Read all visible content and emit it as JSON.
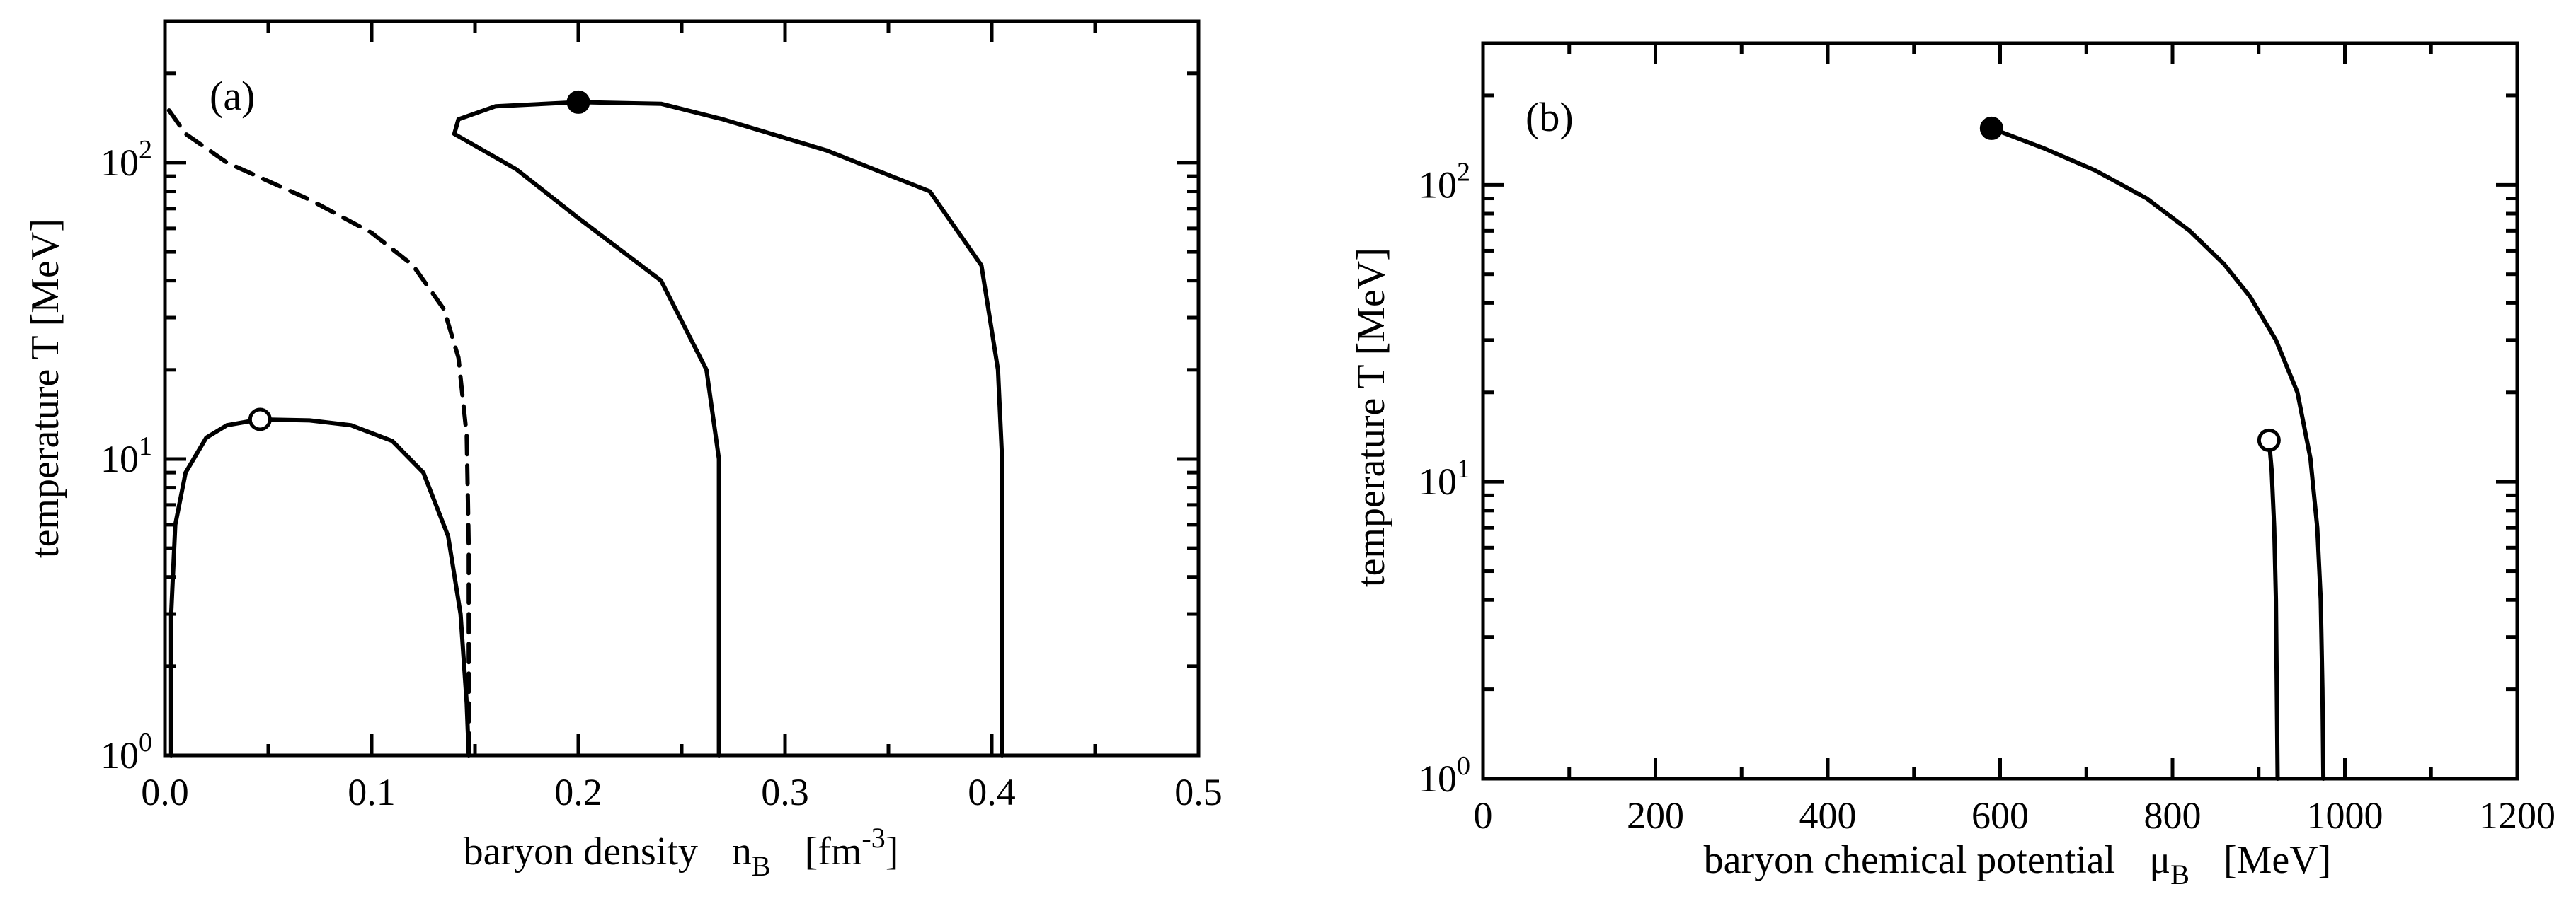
{
  "chart_data": [
    {
      "type": "line",
      "panel_label": "(a)",
      "xlabel": "baryon density",
      "xlabel_symbol": "n",
      "xlabel_sub": "B",
      "xlabel_unit_open": "[fm",
      "xlabel_unit_sup": "-3",
      "xlabel_unit_close": "]",
      "ylabel": "temperature   T   [MeV]",
      "xlim": [
        0,
        0.5
      ],
      "ylim": [
        1,
        300
      ],
      "yscale": "log",
      "x_ticks": [
        {
          "value": 0.0,
          "label": "0.0"
        },
        {
          "value": 0.1,
          "label": "0.1"
        },
        {
          "value": 0.2,
          "label": "0.2"
        },
        {
          "value": 0.3,
          "label": "0.3"
        },
        {
          "value": 0.4,
          "label": "0.4"
        },
        {
          "value": 0.5,
          "label": "0.5"
        }
      ],
      "y_ticks": [
        {
          "value": 1,
          "base": "10",
          "exp": "0"
        },
        {
          "value": 10,
          "base": "10",
          "exp": "1"
        },
        {
          "value": 100,
          "base": "10",
          "exp": "2"
        }
      ],
      "series": [
        {
          "style": "solid",
          "points": [
            [
              0.003,
              1
            ],
            [
              0.003,
              3
            ],
            [
              0.005,
              6
            ],
            [
              0.01,
              9
            ],
            [
              0.02,
              11.8
            ],
            [
              0.03,
              13
            ],
            [
              0.046,
              13.6
            ],
            [
              0.07,
              13.5
            ],
            [
              0.09,
              13
            ],
            [
              0.11,
              11.5
            ],
            [
              0.125,
              9
            ],
            [
              0.137,
              5.5
            ],
            [
              0.143,
              3
            ],
            [
              0.146,
              1.5
            ],
            [
              0.147,
              1
            ]
          ]
        },
        {
          "style": "dashed",
          "points": [
            [
              0.002,
              150
            ],
            [
              0.01,
              125
            ],
            [
              0.03,
              100
            ],
            [
              0.07,
              75
            ],
            [
              0.1,
              58
            ],
            [
              0.12,
              45
            ],
            [
              0.135,
              32
            ],
            [
              0.142,
              22
            ],
            [
              0.146,
              12
            ],
            [
              0.147,
              5
            ],
            [
              0.147,
              1
            ]
          ]
        },
        {
          "style": "solid",
          "points": [
            [
              0.268,
              1
            ],
            [
              0.268,
              10
            ],
            [
              0.262,
              20
            ],
            [
              0.24,
              40
            ],
            [
              0.2,
              65
            ],
            [
              0.17,
              95
            ],
            [
              0.14,
              125
            ],
            [
              0.142,
              140
            ],
            [
              0.16,
              155
            ],
            [
              0.2,
              160
            ],
            [
              0.24,
              158
            ],
            [
              0.27,
              140
            ],
            [
              0.32,
              110
            ],
            [
              0.37,
              80
            ],
            [
              0.395,
              45
            ],
            [
              0.403,
              20
            ],
            [
              0.405,
              10
            ],
            [
              0.405,
              1
            ]
          ]
        }
      ],
      "markers": [
        {
          "x": 0.2,
          "y": 160,
          "filled": true
        },
        {
          "x": 0.046,
          "y": 13.6,
          "filled": false
        }
      ]
    },
    {
      "type": "line",
      "panel_label": "(b)",
      "xlabel": "baryon chemical potential",
      "xlabel_symbol": "μ",
      "xlabel_sub": "B",
      "xlabel_unit_open": "[MeV]",
      "ylabel": "temperature   T   [MeV]",
      "xlim": [
        0,
        1200
      ],
      "ylim": [
        1,
        300
      ],
      "yscale": "log",
      "x_ticks": [
        {
          "value": 0,
          "label": "0"
        },
        {
          "value": 200,
          "label": "200"
        },
        {
          "value": 400,
          "label": "400"
        },
        {
          "value": 600,
          "label": "600"
        },
        {
          "value": 800,
          "label": "800"
        },
        {
          "value": 1000,
          "label": "1000"
        },
        {
          "value": 1200,
          "label": "1200"
        }
      ],
      "y_ticks": [
        {
          "value": 1,
          "base": "10",
          "exp": "0"
        },
        {
          "value": 10,
          "base": "10",
          "exp": "1"
        },
        {
          "value": 100,
          "base": "10",
          "exp": "2"
        }
      ],
      "series": [
        {
          "style": "solid",
          "points": [
            [
              590,
              155
            ],
            [
              650,
              133
            ],
            [
              710,
              112
            ],
            [
              770,
              90
            ],
            [
              820,
              70
            ],
            [
              860,
              54
            ],
            [
              890,
              42
            ],
            [
              920,
              30
            ],
            [
              945,
              20
            ],
            [
              960,
              12
            ],
            [
              968,
              7
            ],
            [
              972,
              4
            ],
            [
              974,
              2
            ],
            [
              975,
              1
            ]
          ]
        },
        {
          "style": "solid",
          "points": [
            [
              912,
              13.8
            ],
            [
              915,
              11
            ],
            [
              918,
              7
            ],
            [
              920,
              4
            ],
            [
              921,
              2
            ],
            [
              922,
              1
            ]
          ]
        }
      ],
      "markers": [
        {
          "x": 590,
          "y": 155,
          "filled": true
        },
        {
          "x": 912,
          "y": 13.8,
          "filled": false
        }
      ]
    }
  ]
}
